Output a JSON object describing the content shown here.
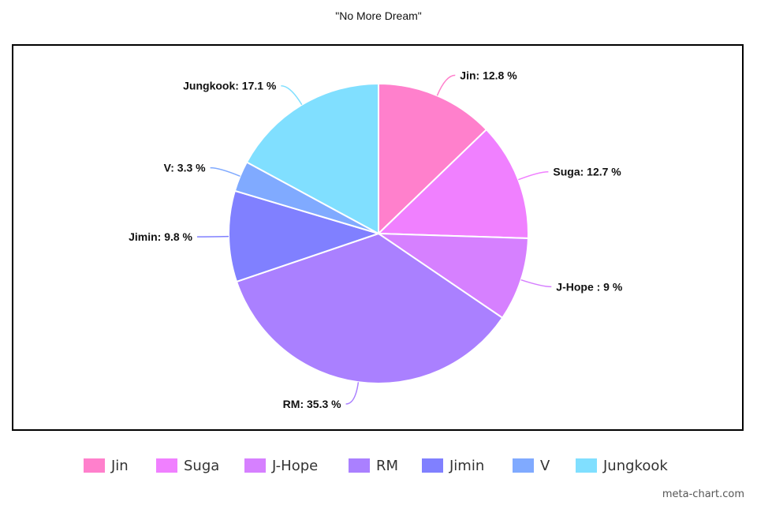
{
  "chart_data": {
    "type": "pie",
    "title": "\"No More Dream\"",
    "categories": [
      "Jin",
      "Suga",
      "J-Hope",
      "RM",
      "Jimin",
      "V",
      "Jungkook"
    ],
    "values": [
      12.8,
      12.7,
      9,
      35.3,
      9.8,
      3.3,
      17.1
    ],
    "data_labels": [
      "Jin: 12.8 %",
      "Suga: 12.7 %",
      "J-Hope : 9 %",
      "RM: 35.3 %",
      "Jimin: 9.8 %",
      "V: 3.3 %",
      "Jungkook: 17.1 %"
    ],
    "colors": [
      "#ff80cc",
      "#f080ff",
      "#d680ff",
      "#aa80ff",
      "#8080ff",
      "#80aaff",
      "#80dfff"
    ],
    "legend": {
      "show": true,
      "placement": "bottom",
      "entries": [
        "Jin",
        "Suga",
        "J-Hope",
        "RM",
        "Jimin",
        "V",
        "Jungkook"
      ]
    },
    "start_angle": "top",
    "direction": "clockwise"
  },
  "watermark": "meta-chart.com"
}
